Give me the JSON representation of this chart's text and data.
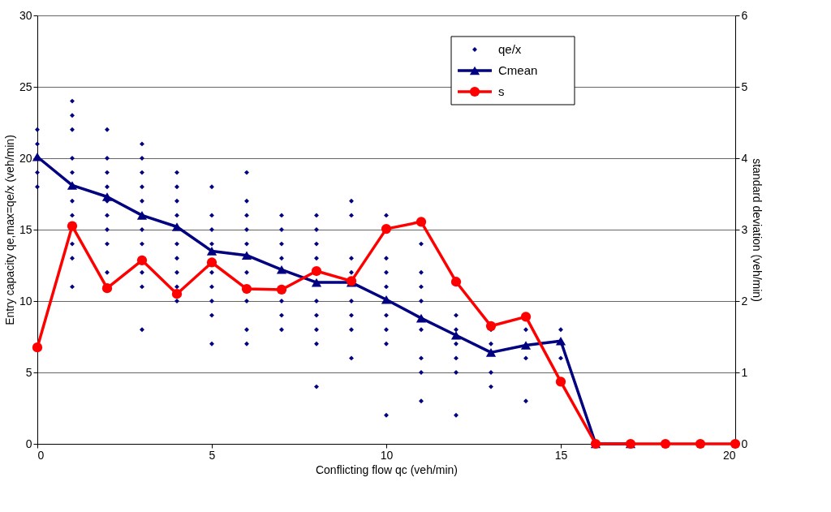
{
  "chart_data": {
    "type": "line",
    "xlabel": "Conflicting flow qc (veh/min)",
    "ylabel": "Entry capacity qe,max=qe/x (veh/min)",
    "y2label": "standard deviation (veh/min)",
    "xlim": [
      0,
      20
    ],
    "xticks": [
      0,
      5,
      10,
      15,
      20
    ],
    "ylim": [
      0,
      30
    ],
    "yticks": [
      0,
      5,
      10,
      15,
      20,
      25,
      30
    ],
    "y2lim": [
      0,
      6
    ],
    "y2ticks": [
      0,
      1,
      2,
      3,
      4,
      5,
      6
    ],
    "grid": "y",
    "legend": "top right",
    "series": [
      {
        "name": "qe/x",
        "type": "scatter",
        "marker": "diamond",
        "color": "#000080",
        "x": [
          0,
          0,
          0,
          0,
          1,
          1,
          1,
          1,
          1,
          1,
          1,
          1,
          1,
          1,
          2,
          2,
          2,
          2,
          2,
          2,
          2,
          2,
          2,
          3,
          3,
          3,
          3,
          3,
          3,
          3,
          3,
          3,
          3,
          4,
          4,
          4,
          4,
          4,
          4,
          4,
          4,
          4,
          5,
          5,
          5,
          5,
          5,
          5,
          5,
          5,
          5,
          6,
          6,
          6,
          6,
          6,
          6,
          6,
          6,
          6,
          7,
          7,
          7,
          7,
          7,
          7,
          7,
          8,
          8,
          8,
          8,
          8,
          8,
          8,
          8,
          8,
          9,
          9,
          9,
          9,
          9,
          9,
          9,
          9,
          10,
          10,
          10,
          10,
          10,
          10,
          10,
          10,
          11,
          11,
          11,
          11,
          11,
          11,
          11,
          11,
          12,
          12,
          12,
          12,
          12,
          12,
          13,
          13,
          13,
          13,
          14,
          14,
          14,
          15,
          15
        ],
        "values": [
          22,
          21,
          19,
          18,
          24,
          23,
          22,
          20,
          19,
          17,
          16,
          14,
          13,
          11,
          22,
          20,
          19,
          18,
          17,
          16,
          15,
          14,
          12,
          21,
          20,
          19,
          18,
          17,
          15,
          14,
          12,
          11,
          8,
          19,
          18,
          17,
          16,
          14,
          13,
          12,
          11,
          10,
          18,
          16,
          15,
          14,
          12,
          11,
          10,
          9,
          7,
          19,
          17,
          16,
          15,
          14,
          12,
          10,
          8,
          7,
          16,
          15,
          14,
          13,
          10,
          9,
          8,
          16,
          15,
          14,
          13,
          10,
          9,
          8,
          7,
          4,
          17,
          16,
          13,
          12,
          10,
          9,
          8,
          6,
          16,
          13,
          12,
          11,
          9,
          8,
          7,
          2,
          14,
          12,
          11,
          10,
          8,
          6,
          5,
          3,
          9,
          8,
          7,
          6,
          5,
          2,
          8,
          7,
          5,
          4,
          8,
          6,
          3,
          8,
          6
        ]
      },
      {
        "name": "Cmean",
        "type": "line",
        "marker": "triangle",
        "color": "#000080",
        "x": [
          0,
          1,
          2,
          3,
          4,
          5,
          6,
          7,
          8,
          9,
          10,
          11,
          12,
          13,
          14,
          15,
          16,
          17
        ],
        "values": [
          20.1,
          18.1,
          17.3,
          16.0,
          15.2,
          13.5,
          13.2,
          12.2,
          11.3,
          11.3,
          10.1,
          8.8,
          7.6,
          6.4,
          6.9,
          7.2,
          0,
          0
        ]
      },
      {
        "name": "s",
        "type": "line",
        "marker": "circle",
        "color": "#ff0000",
        "axis": "y2",
        "x": [
          0,
          1,
          2,
          3,
          4,
          5,
          6,
          7,
          8,
          9,
          10,
          11,
          12,
          13,
          14,
          15,
          16,
          17,
          18,
          19,
          20
        ],
        "values": [
          1.35,
          3.05,
          2.18,
          2.57,
          2.1,
          2.54,
          2.17,
          2.16,
          2.42,
          2.28,
          3.01,
          3.11,
          2.27,
          1.65,
          1.78,
          0.87,
          0,
          0,
          0,
          0,
          0
        ]
      }
    ]
  }
}
